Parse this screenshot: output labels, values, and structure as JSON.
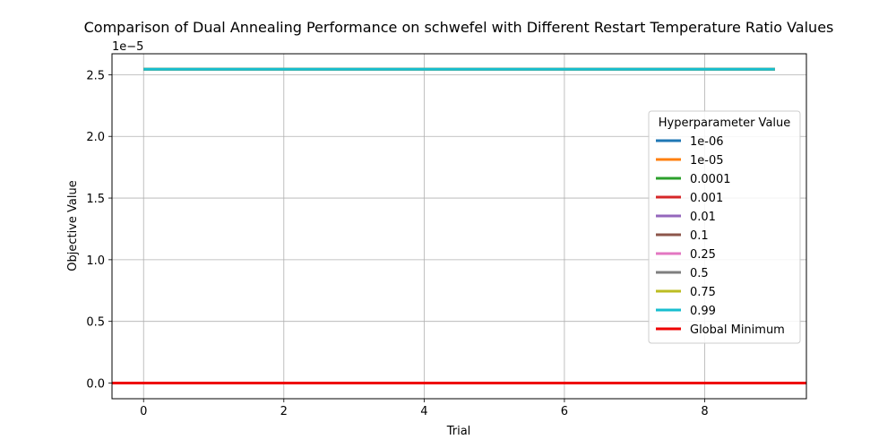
{
  "chart_data": {
    "type": "line",
    "title": "Comparison of Dual Annealing Performance on schwefel with Different Restart Temperature Ratio Values",
    "xlabel": "Trial",
    "ylabel": "Objective Value",
    "y_offset_label": "1e−5",
    "xlim": [
      -0.45,
      9.45
    ],
    "ylim": [
      -1.27e-06,
      2.67e-05
    ],
    "xticks": [
      0,
      2,
      4,
      6,
      8
    ],
    "xtick_labels": [
      "0",
      "2",
      "4",
      "6",
      "8"
    ],
    "yticks": [
      0,
      5e-06,
      1e-05,
      1.5e-05,
      2e-05,
      2.5e-05
    ],
    "ytick_labels": [
      "0.0",
      "0.5",
      "1.0",
      "1.5",
      "2.0",
      "2.5"
    ],
    "grid": true,
    "legend": {
      "title": "Hyperparameter Value",
      "placement": "center-right"
    },
    "x": [
      0,
      1,
      2,
      3,
      4,
      5,
      6,
      7,
      8,
      9
    ],
    "series": [
      {
        "name": "1e-06",
        "color": "#1f77b4",
        "values": [
          2.545e-05,
          2.545e-05,
          2.545e-05,
          2.545e-05,
          2.545e-05,
          2.545e-05,
          2.545e-05,
          2.545e-05,
          2.545e-05,
          2.545e-05
        ]
      },
      {
        "name": "1e-05",
        "color": "#ff7f0e",
        "values": [
          2.545e-05,
          2.545e-05,
          2.545e-05,
          2.545e-05,
          2.545e-05,
          2.545e-05,
          2.545e-05,
          2.545e-05,
          2.545e-05,
          2.545e-05
        ]
      },
      {
        "name": "0.0001",
        "color": "#2ca02c",
        "values": [
          2.545e-05,
          2.545e-05,
          2.545e-05,
          2.545e-05,
          2.545e-05,
          2.545e-05,
          2.545e-05,
          2.545e-05,
          2.545e-05,
          2.545e-05
        ]
      },
      {
        "name": "0.001",
        "color": "#d62728",
        "values": [
          2.545e-05,
          2.545e-05,
          2.545e-05,
          2.545e-05,
          2.545e-05,
          2.545e-05,
          2.545e-05,
          2.545e-05,
          2.545e-05,
          2.545e-05
        ]
      },
      {
        "name": "0.01",
        "color": "#9467bd",
        "values": [
          2.545e-05,
          2.545e-05,
          2.545e-05,
          2.545e-05,
          2.545e-05,
          2.545e-05,
          2.545e-05,
          2.545e-05,
          2.545e-05,
          2.545e-05
        ]
      },
      {
        "name": "0.1",
        "color": "#8c564b",
        "values": [
          2.545e-05,
          2.545e-05,
          2.545e-05,
          2.545e-05,
          2.545e-05,
          2.545e-05,
          2.545e-05,
          2.545e-05,
          2.545e-05,
          2.545e-05
        ]
      },
      {
        "name": "0.25",
        "color": "#e377c2",
        "values": [
          2.545e-05,
          2.545e-05,
          2.545e-05,
          2.545e-05,
          2.545e-05,
          2.545e-05,
          2.545e-05,
          2.545e-05,
          2.545e-05,
          2.545e-05
        ]
      },
      {
        "name": "0.5",
        "color": "#7f7f7f",
        "values": [
          2.545e-05,
          2.545e-05,
          2.545e-05,
          2.545e-05,
          2.545e-05,
          2.545e-05,
          2.545e-05,
          2.545e-05,
          2.545e-05,
          2.545e-05
        ]
      },
      {
        "name": "0.75",
        "color": "#bcbd22",
        "values": [
          2.545e-05,
          2.545e-05,
          2.545e-05,
          2.545e-05,
          2.545e-05,
          2.545e-05,
          2.545e-05,
          2.545e-05,
          2.545e-05,
          2.545e-05
        ]
      },
      {
        "name": "0.99",
        "color": "#17becf",
        "values": [
          2.545e-05,
          2.545e-05,
          2.545e-05,
          2.545e-05,
          2.545e-05,
          2.545e-05,
          2.545e-05,
          2.545e-05,
          2.545e-05,
          2.545e-05
        ]
      }
    ],
    "reference_line": {
      "name": "Global Minimum",
      "color": "#ee0000",
      "y": 0
    }
  }
}
